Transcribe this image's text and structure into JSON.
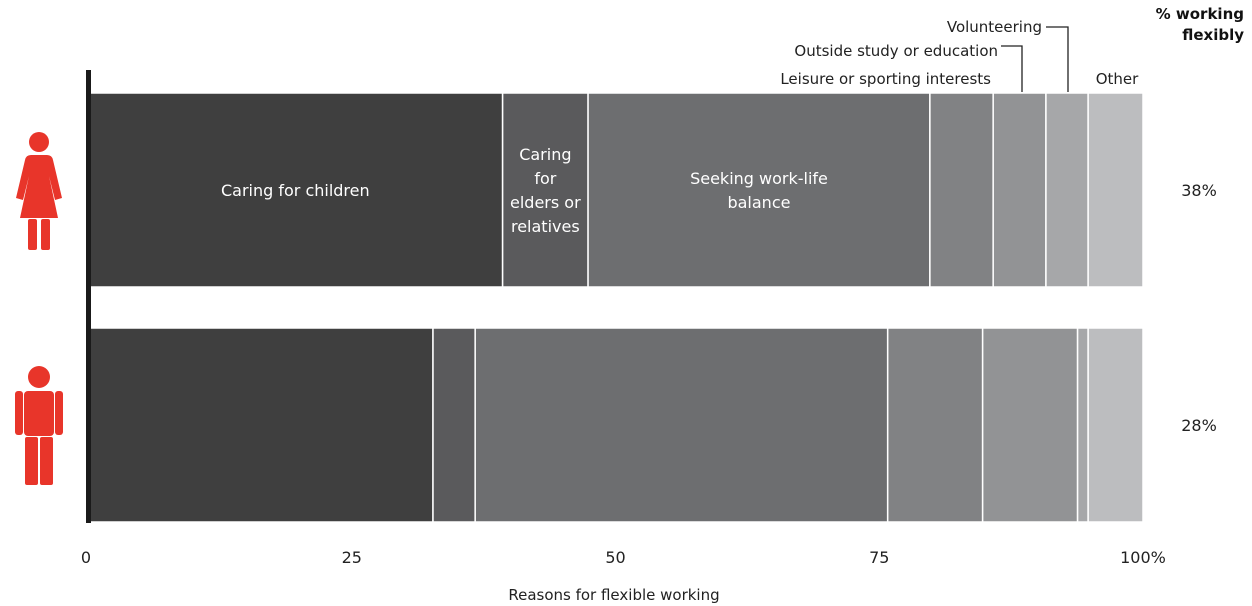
{
  "chart_data": {
    "type": "bar",
    "stacked": true,
    "orientation": "horizontal",
    "xlabel": "Reasons for flexible working",
    "xlim": [
      0,
      100
    ],
    "ticks": [
      "0",
      "25",
      "50",
      "75",
      "100%"
    ],
    "right_header": "% working flexibly",
    "categories": [
      "women",
      "men"
    ],
    "rate_labels": [
      "38%",
      "28%"
    ],
    "series": [
      {
        "name": "Caring for children",
        "values": [
          39.3,
          32.7
        ],
        "color": "#3f3f3f"
      },
      {
        "name": "Caring for elders or relatives",
        "values": [
          8.1,
          4.0
        ],
        "color": "#5a5a5c"
      },
      {
        "name": "Seeking work-life balance",
        "values": [
          32.4,
          39.1
        ],
        "color": "#6d6e70"
      },
      {
        "name": "Leisure or sporting interests",
        "values": [
          6.0,
          9.0
        ],
        "color": "#818284"
      },
      {
        "name": "Outside study or education",
        "values": [
          5.0,
          9.0
        ],
        "color": "#929395"
      },
      {
        "name": "Volunteering",
        "values": [
          4.0,
          1.0
        ],
        "color": "#a6a7a9"
      },
      {
        "name": "Other",
        "values": [
          5.2,
          5.2
        ],
        "color": "#bcbdbf"
      }
    ],
    "segment_labels": {
      "Caring for children": [
        "Caring for children"
      ],
      "Caring for elders or relatives": [
        "Caring",
        "for",
        "elders or",
        "relatives"
      ],
      "Seeking work-life balance": [
        "Seeking work-life",
        "balance"
      ]
    },
    "top_labels": [
      "Volunteering",
      "Outside study or education",
      "Leisure or sporting interests",
      "Other"
    ],
    "icon_color": "#e8352a"
  }
}
